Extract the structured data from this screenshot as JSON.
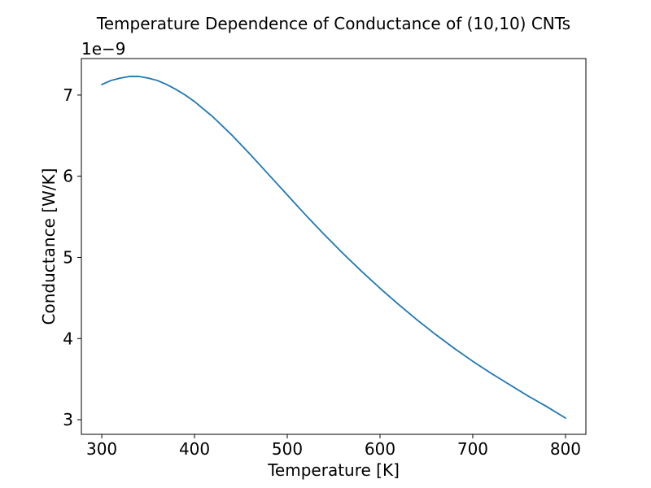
{
  "chart_data": {
    "type": "line",
    "title": "Temperature Dependence of Conductance of (10,10) CNTs",
    "xlabel": "Temperature [K]",
    "ylabel": "Conductance [W/K]",
    "y_offset_label": "1e−9",
    "xlim": [
      278,
      822
    ],
    "ylim": [
      2.82,
      7.45
    ],
    "x_ticks": [
      300,
      400,
      500,
      600,
      700,
      800
    ],
    "y_ticks": [
      3,
      4,
      5,
      6,
      7
    ],
    "x_tick_labels": [
      "300",
      "400",
      "500",
      "600",
      "700",
      "800"
    ],
    "y_tick_labels": [
      "3",
      "4",
      "5",
      "6",
      "7"
    ],
    "grid": false,
    "series": [
      {
        "color": "#1f77b4",
        "x": [
          300,
          310,
          320,
          330,
          340,
          350,
          360,
          370,
          380,
          390,
          400,
          420,
          440,
          460,
          480,
          500,
          520,
          540,
          560,
          580,
          600,
          620,
          640,
          660,
          680,
          700,
          720,
          740,
          760,
          780,
          800
        ],
        "y": [
          7.13,
          7.18,
          7.21,
          7.23,
          7.23,
          7.21,
          7.18,
          7.13,
          7.07,
          7.0,
          6.92,
          6.73,
          6.51,
          6.27,
          6.02,
          5.77,
          5.52,
          5.28,
          5.05,
          4.83,
          4.62,
          4.42,
          4.23,
          4.05,
          3.88,
          3.72,
          3.57,
          3.43,
          3.29,
          3.16,
          3.02
        ]
      }
    ]
  }
}
